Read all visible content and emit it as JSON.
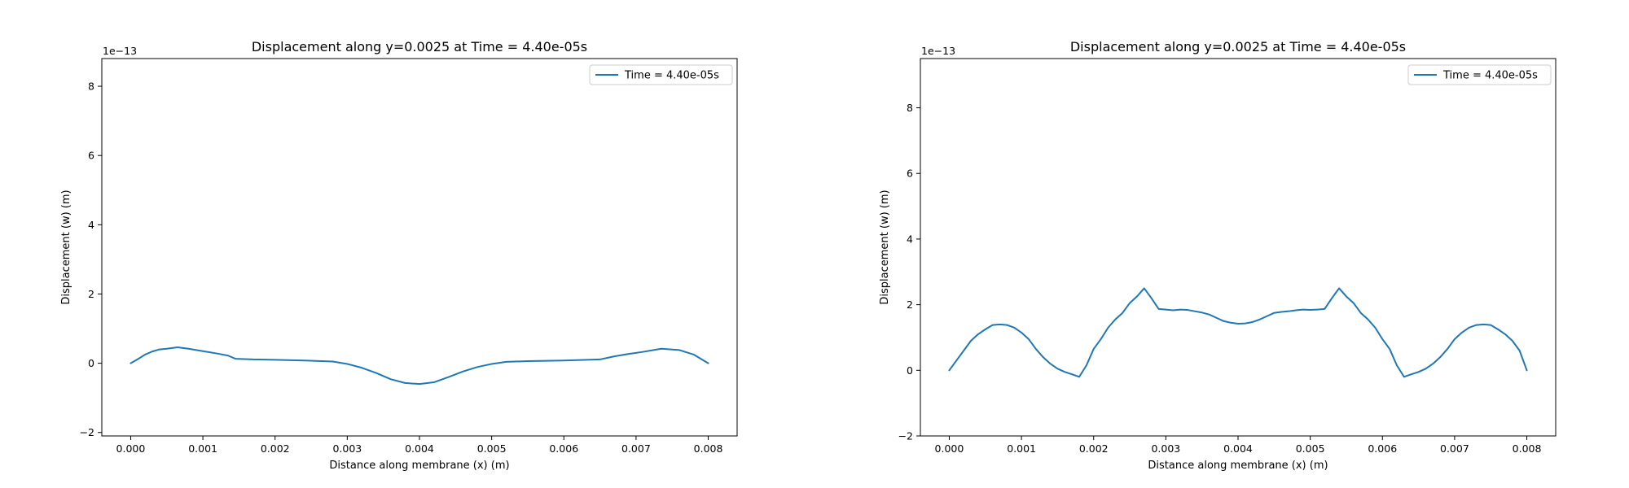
{
  "chart_data": [
    {
      "type": "line",
      "title": "Displacement along y=0.0025 at Time = 4.40e-05s",
      "xlabel": "Distance along membrane (x) (m)",
      "ylabel": "Displacement (w) (m)",
      "y_offset_label": "1e−13",
      "xlim": [
        -0.0004,
        0.0084
      ],
      "ylim": [
        -2.1,
        8.8
      ],
      "x_ticks": [
        0.0,
        0.001,
        0.002,
        0.003,
        0.004,
        0.005,
        0.006,
        0.007,
        0.008
      ],
      "x_tick_labels": [
        "0.000",
        "0.001",
        "0.002",
        "0.003",
        "0.004",
        "0.005",
        "0.006",
        "0.007",
        "0.008"
      ],
      "y_ticks": [
        -2,
        0,
        2,
        4,
        6,
        8
      ],
      "y_tick_labels": [
        "−2",
        "0",
        "2",
        "4",
        "6",
        "8"
      ],
      "grid": false,
      "legend_position": "top-right",
      "color": "#1f77b4",
      "series": [
        {
          "name": "Time = 4.40e-05s",
          "x": [
            0.0,
            0.0001,
            0.0002,
            0.0003,
            0.0004,
            0.0005,
            0.00065,
            0.0008,
            0.001,
            0.0012,
            0.00135,
            0.00145,
            0.0017,
            0.002,
            0.0024,
            0.0028,
            0.003,
            0.0032,
            0.0034,
            0.0036,
            0.0038,
            0.004,
            0.0042,
            0.0044,
            0.0046,
            0.0048,
            0.005,
            0.0052,
            0.0055,
            0.006,
            0.0065,
            0.0067,
            0.0069,
            0.0071,
            0.00735,
            0.0076,
            0.0078,
            0.008
          ],
          "y": [
            0.0,
            0.12,
            0.25,
            0.34,
            0.4,
            0.42,
            0.46,
            0.42,
            0.35,
            0.28,
            0.22,
            0.13,
            0.11,
            0.1,
            0.08,
            0.05,
            -0.02,
            -0.13,
            -0.28,
            -0.46,
            -0.57,
            -0.6,
            -0.55,
            -0.4,
            -0.24,
            -0.11,
            -0.02,
            0.04,
            0.06,
            0.08,
            0.11,
            0.2,
            0.27,
            0.33,
            0.42,
            0.38,
            0.25,
            0.0
          ]
        }
      ]
    },
    {
      "type": "line",
      "title": "Displacement along y=0.0025 at Time = 4.40e-05s",
      "xlabel": "Distance along membrane (x) (m)",
      "ylabel": "Displacement (w) (m)",
      "y_offset_label": "1e−13",
      "xlim": [
        -0.0004,
        0.0084
      ],
      "ylim": [
        -2.0,
        9.5
      ],
      "x_ticks": [
        0.0,
        0.001,
        0.002,
        0.003,
        0.004,
        0.005,
        0.006,
        0.007,
        0.008
      ],
      "x_tick_labels": [
        "0.000",
        "0.001",
        "0.002",
        "0.003",
        "0.004",
        "0.005",
        "0.006",
        "0.007",
        "0.008"
      ],
      "y_ticks": [
        -2,
        0,
        2,
        4,
        6,
        8
      ],
      "y_tick_labels": [
        "−2",
        "0",
        "2",
        "4",
        "6",
        "8"
      ],
      "grid": false,
      "legend_position": "top-right",
      "color": "#1f77b4",
      "series": [
        {
          "name": "Time = 4.40e-05s",
          "x": [
            0.0,
            0.0001,
            0.0002,
            0.0003,
            0.0004,
            0.0005,
            0.0006,
            0.0007,
            0.0008,
            0.0009,
            0.001,
            0.0011,
            0.0012,
            0.0013,
            0.0014,
            0.0015,
            0.0016,
            0.0017,
            0.0018,
            0.0019,
            0.002,
            0.0021,
            0.0022,
            0.0023,
            0.0024,
            0.0025,
            0.0026,
            0.0027,
            0.0028,
            0.0029,
            0.003,
            0.0031,
            0.0032,
            0.0033,
            0.0034,
            0.0035,
            0.0036,
            0.0037,
            0.0038,
            0.0039,
            0.004,
            0.0041,
            0.0042,
            0.0043,
            0.0044,
            0.0045,
            0.0046,
            0.0047,
            0.0048,
            0.0049,
            0.005,
            0.0051,
            0.0052,
            0.0053,
            0.0054,
            0.0055,
            0.0056,
            0.0057,
            0.0058,
            0.0059,
            0.006,
            0.0061,
            0.0062,
            0.0063,
            0.0064,
            0.0065,
            0.0066,
            0.0067,
            0.0068,
            0.0069,
            0.007,
            0.0071,
            0.0072,
            0.0073,
            0.0074,
            0.0075,
            0.0076,
            0.0077,
            0.0078,
            0.0079,
            0.008
          ],
          "y": [
            0.0,
            0.3,
            0.6,
            0.9,
            1.1,
            1.25,
            1.38,
            1.4,
            1.38,
            1.3,
            1.15,
            0.95,
            0.65,
            0.4,
            0.2,
            0.05,
            -0.05,
            -0.12,
            -0.2,
            0.15,
            0.65,
            0.95,
            1.3,
            1.55,
            1.75,
            2.05,
            2.25,
            2.5,
            2.2,
            1.87,
            1.85,
            1.83,
            1.85,
            1.84,
            1.8,
            1.76,
            1.7,
            1.6,
            1.5,
            1.45,
            1.42,
            1.43,
            1.47,
            1.55,
            1.65,
            1.75,
            1.78,
            1.8,
            1.83,
            1.85,
            1.84,
            1.85,
            1.87,
            2.2,
            2.5,
            2.25,
            2.05,
            1.75,
            1.55,
            1.3,
            0.95,
            0.65,
            0.15,
            -0.2,
            -0.12,
            -0.05,
            0.05,
            0.2,
            0.4,
            0.65,
            0.95,
            1.15,
            1.3,
            1.38,
            1.4,
            1.38,
            1.25,
            1.1,
            0.9,
            0.6,
            0.0
          ]
        }
      ]
    }
  ]
}
